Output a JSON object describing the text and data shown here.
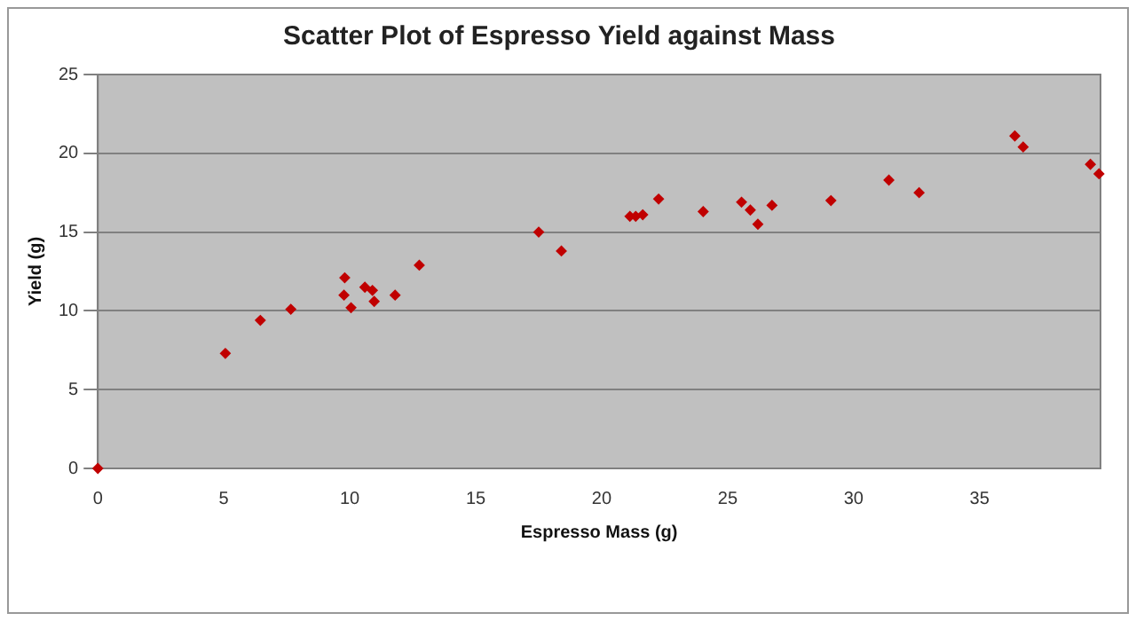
{
  "chart_data": {
    "type": "scatter",
    "title": "Scatter Plot of Espresso Yield against Mass",
    "xlabel": "Espresso Mass (g)",
    "ylabel": "Yield (g)",
    "x": [
      0,
      5.06,
      6.45,
      7.66,
      9.8,
      9.77,
      10.05,
      10.6,
      10.9,
      10.97,
      11.8,
      12.76,
      17.5,
      18.4,
      21.12,
      21.35,
      21.63,
      22.26,
      24.03,
      25.55,
      25.9,
      26.2,
      26.76,
      29.1,
      31.4,
      32.6,
      36.4,
      36.73,
      39.4,
      39.74
    ],
    "series": [
      {
        "color": "#c00000",
        "values": [
          0,
          7.3,
          9.4,
          10.1,
          12.1,
          11.0,
          10.2,
          11.5,
          11.3,
          10.6,
          11.0,
          12.9,
          15.0,
          13.8,
          16.0,
          16.0,
          16.1,
          17.1,
          16.3,
          16.9,
          16.4,
          15.5,
          16.7,
          17.0,
          18.3,
          17.5,
          21.1,
          20.4,
          19.3,
          18.7
        ]
      }
    ],
    "xlim": [
      0,
      39.8
    ],
    "xticks": [
      0,
      5,
      10,
      15,
      20,
      25,
      30,
      35
    ],
    "ylim": [
      0,
      25
    ],
    "yticks": [
      0,
      5,
      10,
      15,
      20,
      25
    ],
    "grid": "y",
    "legend": false,
    "marker": "diamond"
  }
}
